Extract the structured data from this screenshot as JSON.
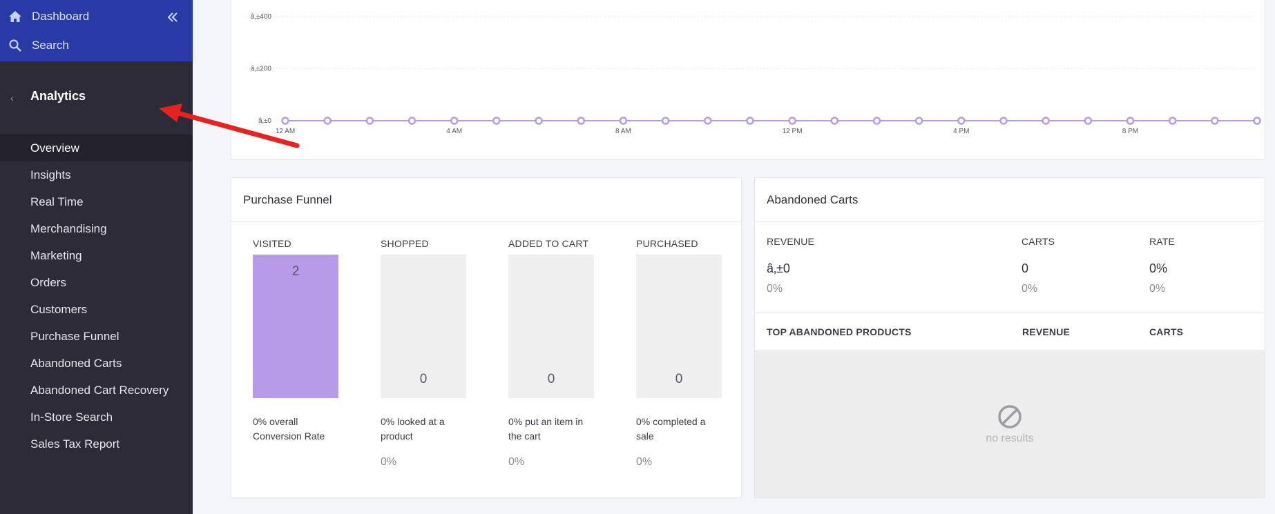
{
  "sidebar": {
    "dashboard_label": "Dashboard",
    "search_label": "Search",
    "section_title": "Analytics",
    "nav": [
      {
        "label": "Overview",
        "active": true
      },
      {
        "label": "Insights"
      },
      {
        "label": "Real Time"
      },
      {
        "label": "Merchandising"
      },
      {
        "label": "Marketing"
      },
      {
        "label": "Orders"
      },
      {
        "label": "Customers"
      },
      {
        "label": "Purchase Funnel"
      },
      {
        "label": "Abandoned Carts"
      },
      {
        "label": "Abandoned Cart Recovery"
      },
      {
        "label": "In-Store Search"
      },
      {
        "label": "Sales Tax Report"
      }
    ]
  },
  "chart_data": {
    "type": "line",
    "y_tick_labels": [
      "â‚±400",
      "â‚±200",
      "â‚±0"
    ],
    "y_ticks": [
      400,
      200,
      0
    ],
    "ylim": [
      0,
      400
    ],
    "x_tick_labels": [
      "12 AM",
      "4 AM",
      "8 AM",
      "12 PM",
      "4 PM",
      "8 PM"
    ],
    "x_hours": [
      0,
      1,
      2,
      3,
      4,
      5,
      6,
      7,
      8,
      9,
      10,
      11,
      12,
      13,
      14,
      15,
      16,
      17,
      18,
      19,
      20,
      21,
      22,
      23
    ],
    "series": [
      {
        "values": [
          0,
          0,
          0,
          0,
          0,
          0,
          0,
          0,
          0,
          0,
          0,
          0,
          0,
          0,
          0,
          0,
          0,
          0,
          0,
          0,
          0,
          0,
          0,
          0
        ],
        "color": "#b79be8"
      }
    ],
    "grid": true
  },
  "funnel": {
    "title": "Purchase Funnel",
    "columns": [
      {
        "label": "VISITED",
        "value": "2",
        "fill": 1.0,
        "desc": "0% overall Conversion Rate",
        "pct": ""
      },
      {
        "label": "SHOPPED",
        "value": "0",
        "fill": 0,
        "desc": "0% looked at a product",
        "pct": "0%"
      },
      {
        "label": "ADDED TO CART",
        "value": "0",
        "fill": 0,
        "desc": "0% put an item in the cart",
        "pct": "0%"
      },
      {
        "label": "PURCHASED",
        "value": "0",
        "fill": 0,
        "desc": "0% completed a sale",
        "pct": "0%"
      }
    ]
  },
  "abandoned": {
    "title": "Abandoned Carts",
    "revenue_label": "REVENUE",
    "carts_label": "CARTS",
    "rate_label": "RATE",
    "revenue_value": "â‚±0",
    "carts_value": "0",
    "rate_value": "0%",
    "revenue_pct": "0%",
    "carts_pct": "0%",
    "rate_pct": "0%",
    "top_products_label": "TOP ABANDONED PRODUCTS",
    "th_revenue": "REVENUE",
    "th_carts": "CARTS",
    "empty_text": "no results"
  },
  "colors": {
    "sidebar_bg": "#2c2b37",
    "sidebar_top_bg": "#283aa6",
    "accent_purple": "#b79be8",
    "annotation_arrow": "#e8231f"
  }
}
